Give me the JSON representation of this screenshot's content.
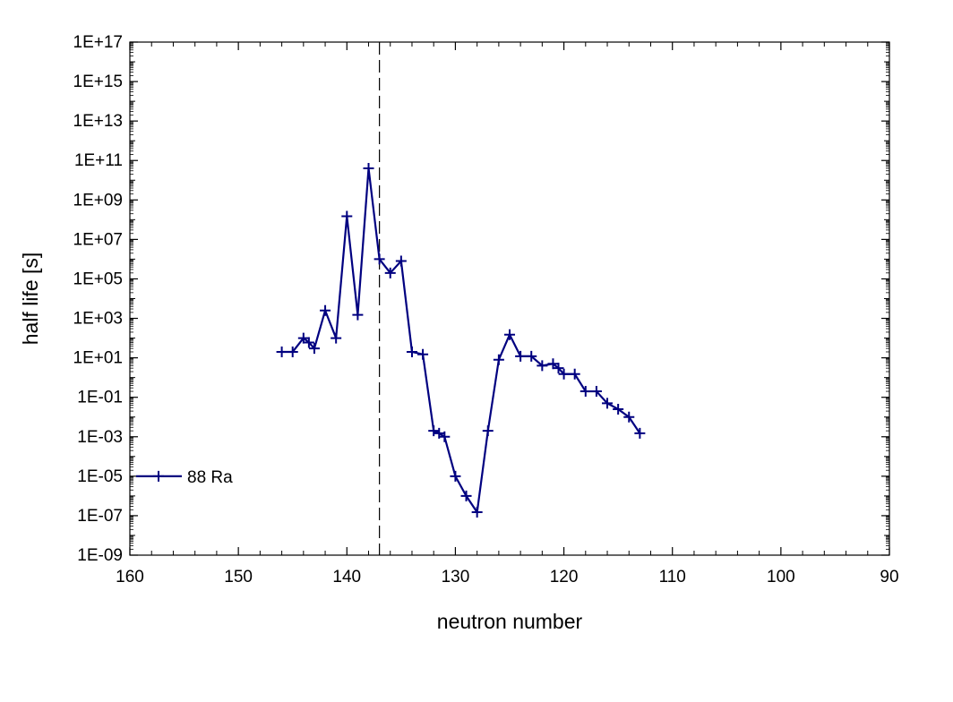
{
  "colors": {
    "series": "#000080",
    "axis": "#000000",
    "reference_line": "#000000"
  },
  "chart_data": {
    "type": "line",
    "xlabel": "neutron number",
    "ylabel": "half life [s]",
    "xlim": [
      160,
      90
    ],
    "x_reversed": true,
    "ylim": [
      1e-09,
      1e+17
    ],
    "y_scale": "log",
    "x_ticks": [
      160,
      150,
      140,
      130,
      120,
      110,
      100,
      90
    ],
    "x_tick_labels": [
      "160",
      "150",
      "140",
      "130",
      "120",
      "110",
      "100",
      "90"
    ],
    "y_ticks": [
      1e-09,
      1e-07,
      1e-05,
      0.001,
      0.1,
      10.0,
      1000.0,
      100000.0,
      10000000.0,
      1000000000.0,
      100000000000.0,
      10000000000000.0,
      1000000000000000.0,
      1e+17
    ],
    "y_tick_labels": [
      "1E-09",
      "1E-07",
      "1E-05",
      "1E-03",
      "1E-01",
      "1E+01",
      "1E+03",
      "1E+05",
      "1E+07",
      "1E+09",
      "1E+11",
      "1E+13",
      "1E+15",
      "1E+17"
    ],
    "reference_line": {
      "x": 137,
      "style": "dashed"
    },
    "grid": false,
    "legend_position": "left-bottom",
    "marker": "plus",
    "series": [
      {
        "name": "88 Ra",
        "x": [
          146,
          145,
          144,
          143.5,
          143,
          142,
          141,
          140,
          139,
          138,
          137,
          136,
          135,
          134,
          133,
          132,
          131.5,
          131,
          130,
          129,
          128,
          127,
          126,
          125,
          124,
          123,
          122,
          121,
          120.5,
          120,
          119,
          118,
          117,
          116,
          115,
          114,
          113
        ],
        "y": [
          20,
          20,
          100,
          60,
          30,
          2500,
          100,
          150000000.0,
          1500,
          40000000000.0,
          1000000.0,
          200000.0,
          800000.0,
          20,
          15,
          0.002,
          0.0015,
          0.001,
          1e-05,
          1e-06,
          1.5e-07,
          0.002,
          8,
          150,
          12,
          12,
          4,
          5,
          3,
          1.5,
          1.5,
          0.2,
          0.2,
          0.05,
          0.025,
          0.01,
          0.0015
        ]
      }
    ]
  }
}
